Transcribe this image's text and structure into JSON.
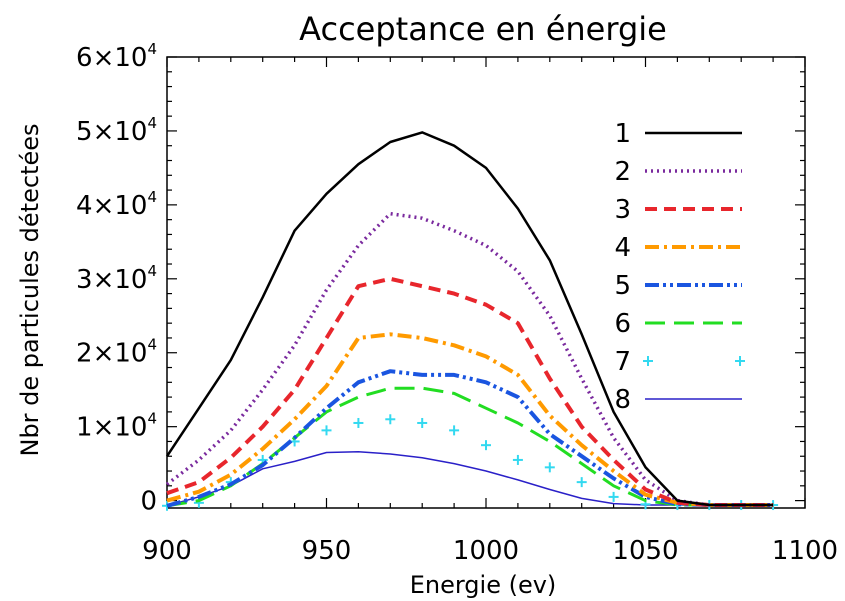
{
  "chart_data": {
    "type": "line",
    "title": "Acceptance en énergie",
    "xlabel": "Energie (ev)",
    "ylabel": "Nbr de particules détectées",
    "xlim": [
      900,
      1100
    ],
    "ylim": [
      -1000,
      60000
    ],
    "xticks": [
      900,
      950,
      1000,
      1050,
      1100
    ],
    "x_tick_labels": [
      "900",
      "950",
      "1000",
      "1050",
      "1100"
    ],
    "yticks": [
      0,
      10000,
      20000,
      30000,
      40000,
      50000,
      60000
    ],
    "y_tick_labels": [
      {
        "base": "0",
        "exp": ""
      },
      {
        "base": "1×10",
        "exp": "4"
      },
      {
        "base": "2×10",
        "exp": "4"
      },
      {
        "base": "3×10",
        "exp": "4"
      },
      {
        "base": "4×10",
        "exp": "4"
      },
      {
        "base": "5×10",
        "exp": "4"
      },
      {
        "base": "6×10",
        "exp": "4"
      }
    ],
    "legend_position": "top-right",
    "grid": false,
    "x": [
      900,
      910,
      920,
      930,
      940,
      950,
      960,
      970,
      980,
      990,
      1000,
      1010,
      1020,
      1030,
      1040,
      1050,
      1060,
      1070,
      1080,
      1090
    ],
    "series": [
      {
        "name": "1",
        "color": "#000000",
        "style": "solid",
        "width": 2.5,
        "values": [
          6000,
          12500,
          19000,
          27500,
          36500,
          41500,
          45500,
          48500,
          49800,
          48000,
          45000,
          39500,
          32500,
          22500,
          12000,
          4500,
          0,
          -600,
          -600,
          -600
        ]
      },
      {
        "name": "2",
        "color": "#7a2a9e",
        "style": "dotted",
        "width": 3.5,
        "values": [
          2200,
          5500,
          9500,
          15000,
          21000,
          28500,
          34500,
          38800,
          38200,
          36500,
          34500,
          31000,
          25000,
          16500,
          8500,
          2800,
          0,
          -600,
          -600,
          -600
        ]
      },
      {
        "name": "3",
        "color": "#e8262c",
        "style": "dashed",
        "width": 4,
        "values": [
          1000,
          2500,
          5800,
          10000,
          15000,
          22000,
          29000,
          30000,
          29000,
          28000,
          26500,
          24000,
          16500,
          10000,
          5500,
          1500,
          -300,
          -600,
          -600,
          -600
        ]
      },
      {
        "name": "4",
        "color": "#ff9a00",
        "style": "dashdot",
        "width": 4,
        "values": [
          0,
          1200,
          3500,
          7000,
          11000,
          15500,
          22000,
          22500,
          22000,
          21000,
          19500,
          17000,
          11500,
          7500,
          4000,
          800,
          -300,
          -600,
          -600,
          -600
        ]
      },
      {
        "name": "5",
        "color": "#1a55e0",
        "style": "dashdotdot",
        "width": 4,
        "values": [
          -700,
          500,
          2200,
          4800,
          8500,
          12500,
          16000,
          17500,
          17000,
          17000,
          16000,
          14000,
          9000,
          6000,
          3000,
          500,
          -500,
          -600,
          -600,
          -600
        ]
      },
      {
        "name": "6",
        "color": "#22dd22",
        "style": "longdash",
        "width": 3,
        "values": [
          -700,
          0,
          2000,
          5000,
          8500,
          12000,
          14000,
          15200,
          15200,
          14500,
          12500,
          10500,
          8000,
          5000,
          2000,
          0,
          -600,
          -600,
          -600,
          -600
        ]
      },
      {
        "name": "7",
        "color": "#33d9f0",
        "style": "plus",
        "width": 2,
        "values": [
          -700,
          -300,
          2500,
          5500,
          8000,
          9500,
          10500,
          11000,
          10500,
          9500,
          7500,
          5500,
          4500,
          2500,
          500,
          -500,
          -600,
          -600,
          -600,
          -600
        ]
      },
      {
        "name": "8",
        "color": "#2a20c8",
        "style": "solid",
        "width": 1.5,
        "values": [
          -700,
          500,
          2000,
          4300,
          5300,
          6500,
          6600,
          6300,
          5800,
          5000,
          4000,
          2800,
          1500,
          300,
          -400,
          -600,
          -600,
          -600,
          -600,
          -600
        ]
      }
    ]
  }
}
